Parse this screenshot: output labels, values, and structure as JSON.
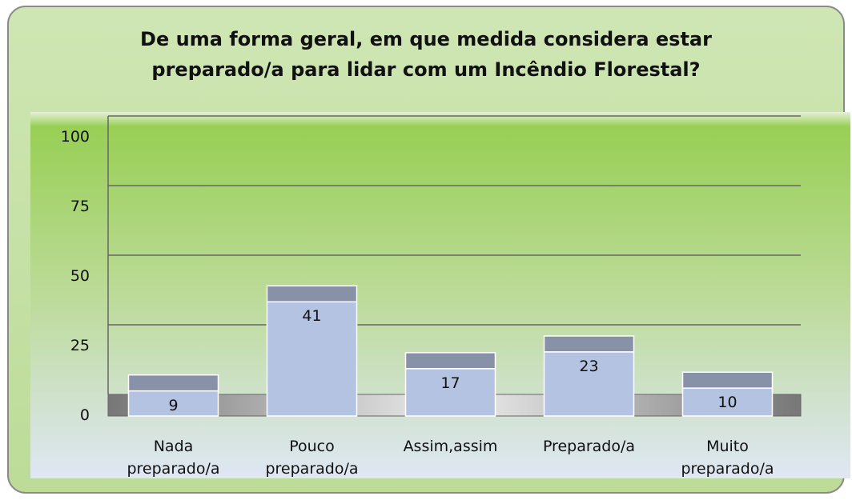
{
  "chart_data": {
    "type": "bar3d",
    "title": "De uma forma geral, em que medida considera estar preparado/a para lidar com um Incêndio Florestal?",
    "categories": [
      "Nada preparado/a",
      "Pouco preparado/a",
      "Assim,assim",
      "Preparado/a",
      "Muito preparado/a"
    ],
    "values": [
      9,
      41,
      17,
      23,
      10
    ],
    "color": "#b4c3e2",
    "ylim": [
      0,
      100
    ],
    "yticks": [
      0,
      25,
      50,
      75,
      100
    ],
    "grid": true
  }
}
